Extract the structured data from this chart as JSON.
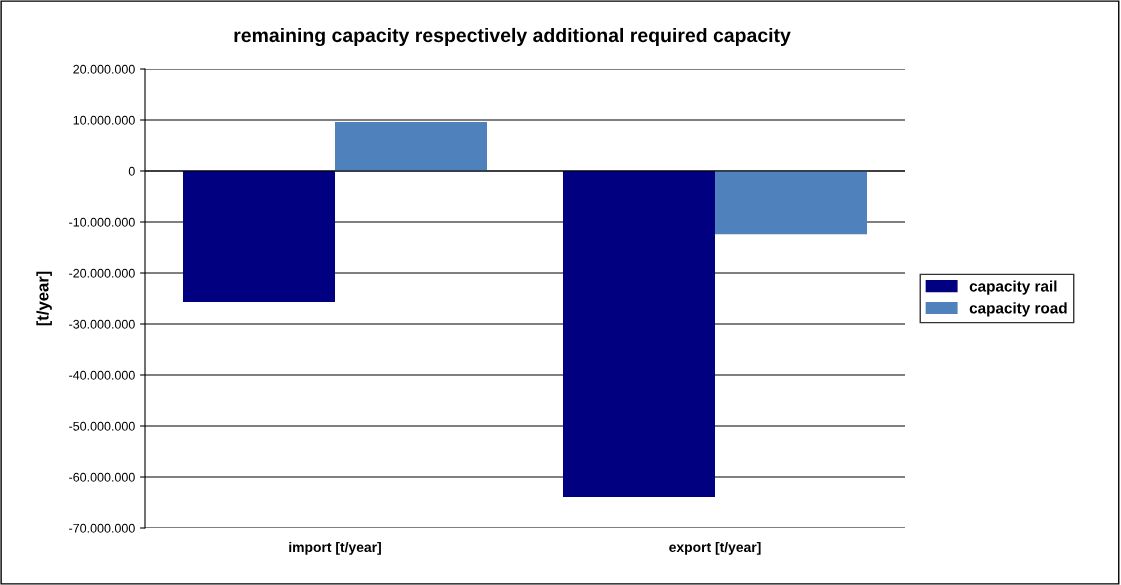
{
  "chart_data": {
    "type": "bar",
    "title": "remaining capacity respectively additional required capacity",
    "ylabel": "[t/year]",
    "categories": [
      "import [t/year]",
      "export [t/year]"
    ],
    "series": [
      {
        "name": "capacity rail",
        "color": "#000080",
        "values": [
          -25700000,
          -63900000
        ]
      },
      {
        "name": "capacity road",
        "color": "#4f81bd",
        "values": [
          9600000,
          -12400000
        ]
      }
    ],
    "ylim": [
      -70000000,
      20000000
    ],
    "yticks": [
      {
        "value": -70000000,
        "label": "-70.000.000"
      },
      {
        "value": -60000000,
        "label": "-60.000.000"
      },
      {
        "value": -50000000,
        "label": "-50.000.000"
      },
      {
        "value": -40000000,
        "label": "-40.000.000"
      },
      {
        "value": -30000000,
        "label": "-30.000.000"
      },
      {
        "value": -20000000,
        "label": "-20.000.000"
      },
      {
        "value": -10000000,
        "label": "-10.000.000"
      },
      {
        "value": 0,
        "label": "0"
      },
      {
        "value": 10000000,
        "label": "10.000.000"
      },
      {
        "value": 20000000,
        "label": "20.000.000"
      }
    ],
    "grid": "y",
    "legend": "right"
  }
}
